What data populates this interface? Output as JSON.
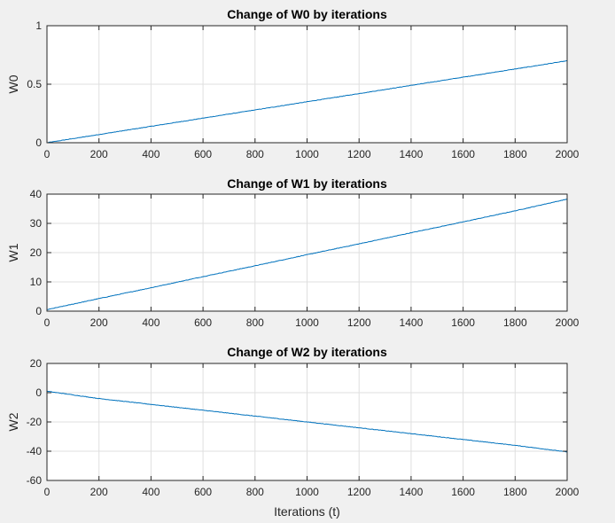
{
  "figure": {
    "background": "#f0f0f0",
    "line_color": "#0072bd"
  },
  "chart_data": [
    {
      "type": "line",
      "title": "Change of W0 by iterations",
      "xlabel": "",
      "ylabel": "W0",
      "xlim": [
        0,
        2000
      ],
      "ylim": [
        0,
        1
      ],
      "xticks": [
        0,
        200,
        400,
        600,
        800,
        1000,
        1200,
        1400,
        1600,
        1800,
        2000
      ],
      "yticks": [
        0,
        0.5,
        1
      ],
      "grid": true,
      "series": [
        {
          "x": [
            0,
            200,
            400,
            600,
            800,
            1000,
            1200,
            1400,
            1600,
            1800,
            2000
          ],
          "y": [
            0,
            0.07,
            0.14,
            0.21,
            0.28,
            0.35,
            0.42,
            0.49,
            0.56,
            0.63,
            0.7
          ]
        }
      ]
    },
    {
      "type": "line",
      "title": "Change of W1 by iterations",
      "xlabel": "",
      "ylabel": "W1",
      "xlim": [
        0,
        2000
      ],
      "ylim": [
        0,
        40
      ],
      "xticks": [
        0,
        200,
        400,
        600,
        800,
        1000,
        1200,
        1400,
        1600,
        1800,
        2000
      ],
      "yticks": [
        0,
        10,
        20,
        30,
        40
      ],
      "grid": true,
      "series": [
        {
          "x": [
            0,
            200,
            400,
            600,
            800,
            1000,
            1200,
            1400,
            1600,
            1800,
            2000
          ],
          "y": [
            0.5,
            4.3,
            8,
            11.8,
            15.5,
            19.3,
            23,
            26.8,
            30.5,
            34.3,
            38.3
          ]
        }
      ]
    },
    {
      "type": "line",
      "title": "Change of W2 by iterations",
      "xlabel": "Iterations (t)",
      "ylabel": "W2",
      "xlim": [
        0,
        2000
      ],
      "ylim": [
        -60,
        20
      ],
      "xticks": [
        0,
        200,
        400,
        600,
        800,
        1000,
        1200,
        1400,
        1600,
        1800,
        2000
      ],
      "yticks": [
        -60,
        -40,
        -20,
        0,
        20
      ],
      "grid": true,
      "series": [
        {
          "x": [
            0,
            200,
            400,
            600,
            800,
            1000,
            1200,
            1400,
            1600,
            1800,
            2000
          ],
          "y": [
            1,
            -4,
            -8,
            -12,
            -16,
            -20,
            -24,
            -28,
            -32,
            -36,
            -40.5
          ]
        }
      ]
    }
  ]
}
